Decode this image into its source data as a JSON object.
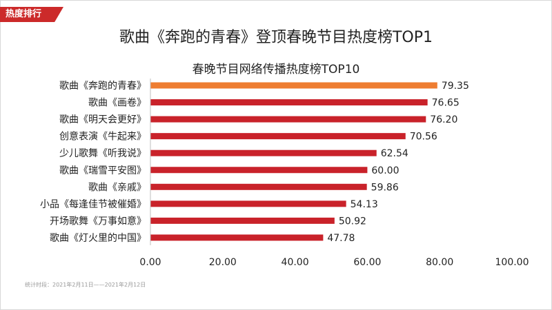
{
  "badge": "热度排行",
  "headline": "歌曲《奔跑的青春》登顶春晚节目热度榜TOP1",
  "footnote": "统计时段：2021年2月11日——2021年2月12日",
  "colors": {
    "highlight": "#ee7d31",
    "bar": "#c9222a",
    "badge": "#cc2a2a"
  },
  "chart_data": {
    "type": "bar",
    "orientation": "horizontal",
    "title": "春晚节目网络传播热度榜TOP10",
    "categories": [
      "歌曲《奔跑的青春》",
      "歌曲《画卷》",
      "歌曲《明天会更好》",
      "创意表演《牛起来》",
      "少儿歌舞《听我说》",
      "歌曲《瑞雪平安图》",
      "歌曲《亲戚》",
      "小品《每逢佳节被催婚》",
      "开场歌舞《万事如意》",
      "歌曲《灯火里的中国》"
    ],
    "values": [
      79.35,
      76.65,
      76.2,
      70.56,
      62.54,
      60.0,
      59.86,
      54.13,
      50.92,
      47.78
    ],
    "value_labels": [
      "79.35",
      "76.65",
      "76.20",
      "70.56",
      "62.54",
      "60.00",
      "59.86",
      "54.13",
      "50.92",
      "47.78"
    ],
    "highlight_index": 0,
    "xlim": [
      0,
      100
    ],
    "xticks": [
      "0.00",
      "20.00",
      "40.00",
      "60.00",
      "80.00",
      "100.00"
    ],
    "grid": false,
    "legend": "none"
  }
}
